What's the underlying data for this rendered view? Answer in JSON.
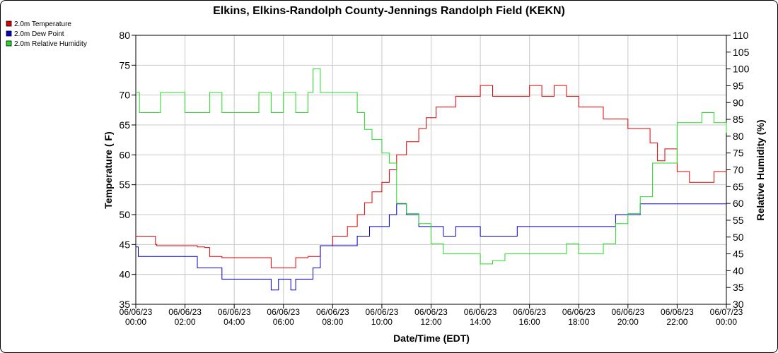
{
  "chart_data": {
    "type": "line",
    "title": "Elkins, Elkins-Randolph County-Jennings Randolph Field (KEKN)",
    "xlabel": "Date/Time (EDT)",
    "ylabel": "Temperature ( F)",
    "y2label": "Relative Humidity (%)",
    "ylim": [
      35,
      80
    ],
    "y2lim": [
      30,
      110
    ],
    "xlim": [
      0,
      24
    ],
    "yticks": [
      "35",
      "40",
      "45",
      "50",
      "55",
      "60",
      "65",
      "70",
      "75",
      "80"
    ],
    "y2ticks": [
      "30",
      "35",
      "40",
      "45",
      "50",
      "55",
      "60",
      "65",
      "70",
      "75",
      "80",
      "85",
      "90",
      "95",
      "100",
      "105",
      "110"
    ],
    "xticks": [
      {
        "date": "06/06/23",
        "time": "00:00"
      },
      {
        "date": "06/06/23",
        "time": "02:00"
      },
      {
        "date": "06/06/23",
        "time": "04:00"
      },
      {
        "date": "06/06/23",
        "time": "06:00"
      },
      {
        "date": "06/06/23",
        "time": "08:00"
      },
      {
        "date": "06/06/23",
        "time": "10:00"
      },
      {
        "date": "06/06/23",
        "time": "12:00"
      },
      {
        "date": "06/06/23",
        "time": "14:00"
      },
      {
        "date": "06/06/23",
        "time": "16:00"
      },
      {
        "date": "06/06/23",
        "time": "18:00"
      },
      {
        "date": "06/06/23",
        "time": "20:00"
      },
      {
        "date": "06/06/23",
        "time": "22:00"
      },
      {
        "date": "06/07/23",
        "time": "00:00"
      }
    ],
    "grid": true,
    "legend_position": "top-left",
    "series": [
      {
        "name": "2.0m Temperature",
        "color": "#e00000",
        "axis": "left",
        "x": [
          0,
          0.75,
          0.8,
          0.85,
          1.5,
          2,
          2.5,
          2.8,
          3,
          3.5,
          4,
          4.5,
          4.9,
          5.5,
          6,
          6.5,
          7,
          7.5,
          8,
          8.3,
          8.6,
          9,
          9.3,
          9.6,
          10,
          10.3,
          10.6,
          11,
          11.5,
          11.8,
          12.2,
          13,
          13.8,
          14,
          14.5,
          15,
          15.5,
          16,
          16.5,
          17,
          17.5,
          18,
          18.5,
          19,
          19.5,
          20,
          20.5,
          20.9,
          21.2,
          21.5,
          22,
          22.5,
          23,
          23.5,
          24
        ],
        "y": [
          46.4,
          46.4,
          45,
          44.8,
          44.8,
          44.8,
          44.6,
          44.5,
          43,
          42.8,
          42.8,
          42.8,
          42.8,
          41.1,
          41.1,
          42.8,
          43,
          44.8,
          46.4,
          46.4,
          48,
          50,
          52,
          53.8,
          55.4,
          57.5,
          60,
          62.2,
          64.4,
          66.2,
          68,
          69.8,
          69.8,
          71.6,
          69.8,
          69.8,
          69.8,
          71.6,
          69.8,
          71.6,
          69.8,
          68,
          68,
          66,
          66,
          64.4,
          64.4,
          62,
          59,
          61,
          57.2,
          55.4,
          55.4,
          57.2,
          57.2
        ]
      },
      {
        "name": "2.0m Dew Point",
        "color": "#0000cc",
        "axis": "left",
        "x": [
          0,
          0.1,
          0.5,
          1,
          1.5,
          2,
          2.5,
          3,
          3.5,
          4,
          4.5,
          5,
          5.5,
          5.8,
          6,
          6.3,
          6.5,
          7,
          7.2,
          7.5,
          8,
          8.5,
          9,
          9.5,
          10,
          10.3,
          10.6,
          11,
          11.5,
          12,
          12.5,
          13,
          13.5,
          14,
          14.5,
          15,
          15.5,
          16,
          16.5,
          17,
          17.5,
          18,
          18.5,
          19,
          19.5,
          20,
          20.5,
          21,
          21.5,
          22,
          22.5,
          23,
          23.5,
          24
        ],
        "y": [
          44.6,
          43,
          43,
          43,
          43,
          43,
          41.1,
          41.1,
          39.2,
          39.2,
          39.2,
          39.2,
          37.4,
          39.2,
          39.2,
          37.4,
          39.2,
          39.2,
          41.1,
          44.8,
          44.8,
          44.8,
          46.4,
          48,
          48,
          50,
          51.8,
          50,
          48,
          48,
          46.4,
          48,
          48,
          46.4,
          46.4,
          46.4,
          48,
          48,
          48,
          48,
          48,
          48,
          48,
          48,
          50,
          50,
          51.8,
          51.8,
          51.8,
          51.8,
          51.8,
          51.8,
          51.8,
          51.8
        ]
      },
      {
        "name": "2.0m Relative Humidity",
        "color": "#22dd22",
        "axis": "right",
        "x": [
          0,
          0.15,
          0.8,
          1,
          1.5,
          2,
          2.5,
          3,
          3.5,
          4,
          4.5,
          5,
          5.5,
          6,
          6.5,
          7,
          7.2,
          7.5,
          8,
          8.5,
          9,
          9.3,
          9.6,
          10,
          10.3,
          10.6,
          11,
          11.5,
          12,
          12.5,
          13,
          13.5,
          14,
          14.5,
          15,
          15.5,
          16,
          16.5,
          17,
          17.5,
          18,
          18.5,
          19,
          19.5,
          20,
          20.5,
          21,
          21.5,
          22,
          22.5,
          23,
          23.5,
          24
        ],
        "y": [
          93,
          87,
          87,
          93,
          93,
          87,
          87,
          93,
          87,
          87,
          87,
          93,
          87,
          93,
          87,
          93,
          100,
          93,
          93,
          93,
          87,
          82,
          79,
          75,
          72,
          60,
          57,
          54,
          48,
          45,
          45,
          45,
          42,
          43,
          45,
          45,
          45,
          45,
          45,
          48,
          45,
          45,
          48,
          54,
          57,
          62,
          72,
          72,
          84,
          84,
          87,
          84,
          81
        ]
      }
    ]
  }
}
